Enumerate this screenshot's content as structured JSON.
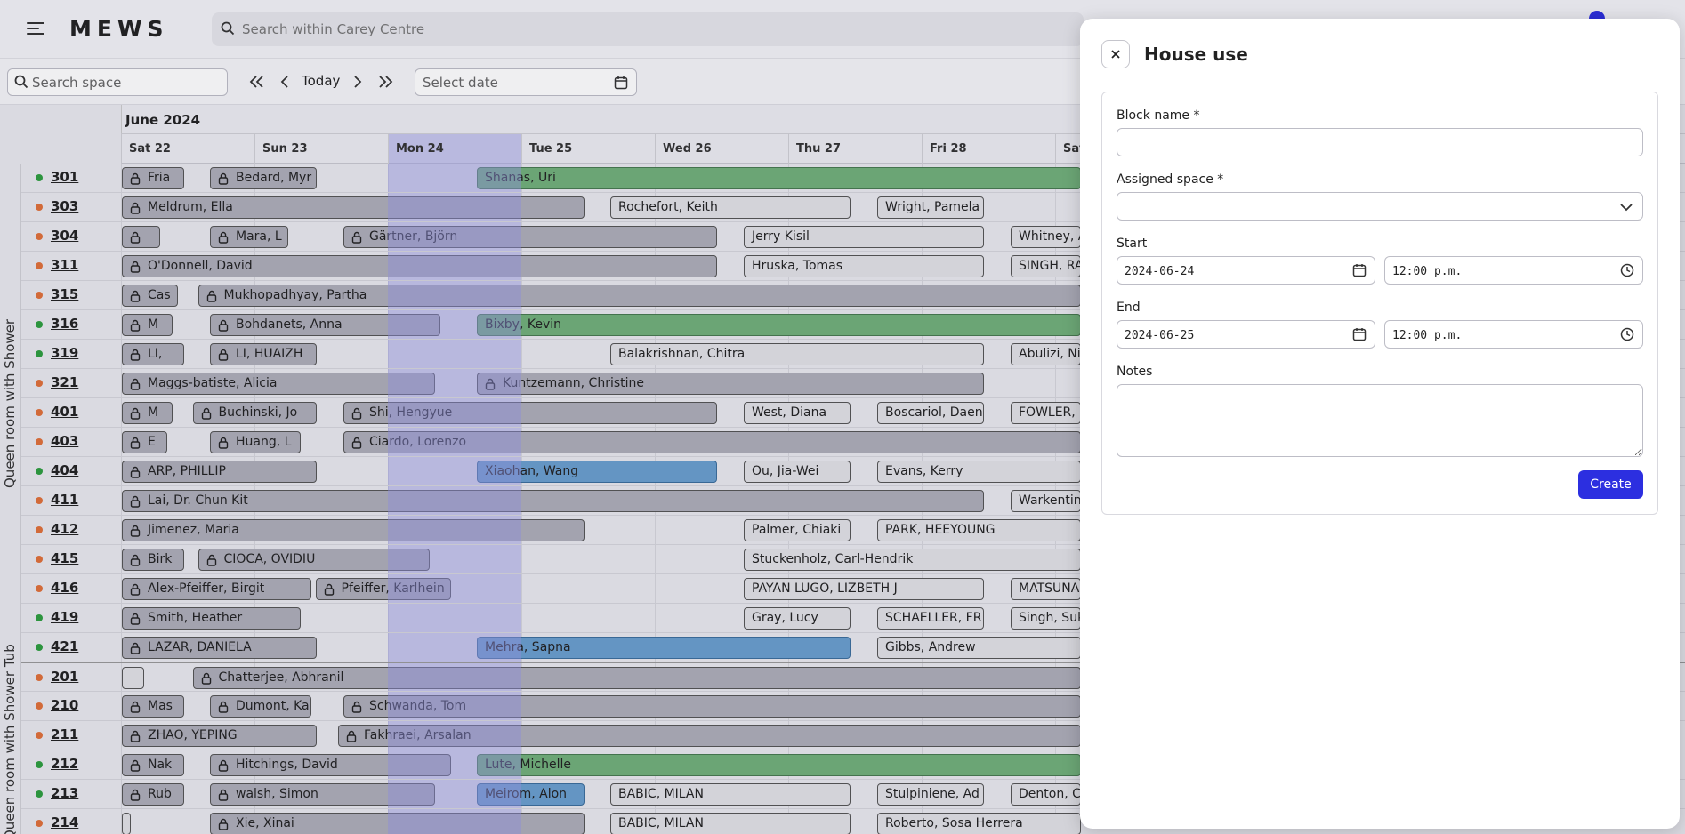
{
  "app": {
    "logo": "MEWS",
    "global_search_placeholder": "Search within Carey Centre"
  },
  "toolbar": {
    "space_search_placeholder": "Search space",
    "today_label": "Today",
    "select_date_placeholder": "Select date"
  },
  "calendar": {
    "month_label": "June 2024",
    "days": [
      "Sat 22",
      "Sun 23",
      "Mon 24",
      "Tue 25",
      "Wed 26",
      "Thu 27",
      "Fri 28",
      "Sat"
    ],
    "groups": [
      {
        "label": "Queen room with Shower"
      },
      {
        "label": "Queen room with Shower Tub"
      }
    ],
    "status_colors": {
      "clean": "#2e9e3f",
      "dirty": "#e0703a"
    },
    "rooms": [
      {
        "number": "301",
        "status": "clean",
        "res": [
          {
            "name": "Fria",
            "locked": true,
            "s": 0,
            "e": 0.48
          },
          {
            "name": "Bedard, Myr",
            "locked": true,
            "s": 0.66,
            "e": 1.47
          },
          {
            "name": "Shanas, Uri",
            "locked": false,
            "color": "green",
            "s": 2.66,
            "e": 7.2
          }
        ]
      },
      {
        "number": "303",
        "status": "dirty",
        "res": [
          {
            "name": "Meldrum, Ella",
            "locked": true,
            "s": 0,
            "e": 3.48
          },
          {
            "name": "Rochefort, Keith",
            "locked": false,
            "s": 3.66,
            "e": 5.47
          },
          {
            "name": "Wright, Pamela",
            "locked": false,
            "s": 5.66,
            "e": 6.47
          }
        ]
      },
      {
        "number": "304",
        "status": "dirty",
        "res": [
          {
            "name": "",
            "locked": true,
            "s": 0,
            "e": 0.3
          },
          {
            "name": "Mara, L",
            "locked": true,
            "s": 0.66,
            "e": 1.26
          },
          {
            "name": "Gärtner, Björn",
            "locked": true,
            "s": 1.66,
            "e": 4.47
          },
          {
            "name": "Jerry Kisil",
            "locked": false,
            "s": 4.66,
            "e": 6.47
          },
          {
            "name": "Whitney, A",
            "locked": false,
            "s": 6.66,
            "e": 7.2
          }
        ]
      },
      {
        "number": "311",
        "status": "dirty",
        "res": [
          {
            "name": "O'Donnell, David",
            "locked": true,
            "s": 0,
            "e": 4.47
          },
          {
            "name": "Hruska, Tomas",
            "locked": false,
            "s": 4.66,
            "e": 6.47
          },
          {
            "name": "SINGH, RA",
            "locked": false,
            "s": 6.66,
            "e": 7.2
          }
        ]
      },
      {
        "number": "315",
        "status": "dirty",
        "res": [
          {
            "name": "Cas",
            "locked": true,
            "s": 0,
            "e": 0.43
          },
          {
            "name": "Mukhopadhyay, Partha",
            "locked": true,
            "s": 0.57,
            "e": 7.2
          }
        ]
      },
      {
        "number": "316",
        "status": "clean",
        "res": [
          {
            "name": "M",
            "locked": true,
            "s": 0,
            "e": 0.39
          },
          {
            "name": "Bohdanets, Anna",
            "locked": true,
            "s": 0.66,
            "e": 2.4
          },
          {
            "name": "Bixby, Kevin",
            "locked": false,
            "color": "green",
            "s": 2.66,
            "e": 7.2
          }
        ]
      },
      {
        "number": "319",
        "status": "clean",
        "res": [
          {
            "name": "LI,",
            "locked": true,
            "s": 0,
            "e": 0.48
          },
          {
            "name": "LI, HUAIZH",
            "locked": true,
            "s": 0.66,
            "e": 1.47
          },
          {
            "name": "Balakrishnan, Chitra",
            "locked": false,
            "s": 3.66,
            "e": 6.47
          },
          {
            "name": "Abulizi, Nij",
            "locked": false,
            "s": 6.66,
            "e": 7.2
          }
        ]
      },
      {
        "number": "321",
        "status": "dirty",
        "res": [
          {
            "name": "Maggs-batiste, Alicia",
            "locked": true,
            "s": 0,
            "e": 2.36
          },
          {
            "name": "Kuntzemann, Christine",
            "locked": true,
            "s": 2.66,
            "e": 6.47
          }
        ]
      },
      {
        "number": "401",
        "status": "dirty",
        "res": [
          {
            "name": "M",
            "locked": true,
            "s": 0,
            "e": 0.39
          },
          {
            "name": "Buchinski, Jo",
            "locked": true,
            "s": 0.53,
            "e": 1.47
          },
          {
            "name": "Shi, Hengyue",
            "locked": true,
            "s": 1.66,
            "e": 4.47
          },
          {
            "name": "West, Diana",
            "locked": false,
            "s": 4.66,
            "e": 5.47
          },
          {
            "name": "Boscariol, Daen",
            "locked": false,
            "s": 5.66,
            "e": 6.47
          },
          {
            "name": "FOWLER, S",
            "locked": false,
            "s": 6.66,
            "e": 7.2
          }
        ]
      },
      {
        "number": "403",
        "status": "dirty",
        "res": [
          {
            "name": "E",
            "locked": true,
            "s": 0,
            "e": 0.35
          },
          {
            "name": "Huang, L",
            "locked": true,
            "s": 0.66,
            "e": 1.35
          },
          {
            "name": "Ciardo, Lorenzo",
            "locked": true,
            "s": 1.66,
            "e": 7.2
          }
        ]
      },
      {
        "number": "404",
        "status": "clean",
        "res": [
          {
            "name": "ARP, PHILLIP",
            "locked": true,
            "s": 0,
            "e": 1.47
          },
          {
            "name": "Xiaohan, Wang",
            "locked": false,
            "color": "blue",
            "s": 2.66,
            "e": 4.47
          },
          {
            "name": "Ou, Jia-Wei",
            "locked": false,
            "s": 4.66,
            "e": 5.47
          },
          {
            "name": "Evans, Kerry",
            "locked": false,
            "s": 5.66,
            "e": 7.2
          }
        ]
      },
      {
        "number": "411",
        "status": "dirty",
        "res": [
          {
            "name": "Lai, Dr. Chun Kit",
            "locked": true,
            "s": 0,
            "e": 6.47
          },
          {
            "name": "Warkentine",
            "locked": false,
            "s": 6.66,
            "e": 7.2
          }
        ]
      },
      {
        "number": "412",
        "status": "dirty",
        "res": [
          {
            "name": "Jimenez, Maria",
            "locked": true,
            "s": 0,
            "e": 3.48
          },
          {
            "name": "Palmer, Chiaki",
            "locked": false,
            "s": 4.66,
            "e": 5.47
          },
          {
            "name": "PARK, HEEYOUNG",
            "locked": false,
            "s": 5.66,
            "e": 7.2
          }
        ]
      },
      {
        "number": "415",
        "status": "dirty",
        "res": [
          {
            "name": "Birk",
            "locked": true,
            "s": 0,
            "e": 0.48
          },
          {
            "name": "CIOCA, OVIDIU",
            "locked": true,
            "s": 0.57,
            "e": 2.32
          },
          {
            "name": "Stuckenholz, Carl-Hendrik",
            "locked": false,
            "s": 4.66,
            "e": 7.2
          }
        ]
      },
      {
        "number": "416",
        "status": "dirty",
        "res": [
          {
            "name": "Alex-Pfeiffer, Birgit",
            "locked": true,
            "s": 0,
            "e": 1.43
          },
          {
            "name": "Pfeiffer, Karlhein",
            "locked": true,
            "s": 1.45,
            "e": 2.48
          },
          {
            "name": "PAYAN LUGO, LIZBETH J",
            "locked": false,
            "s": 4.66,
            "e": 6.47
          },
          {
            "name": "MATSUNA",
            "locked": false,
            "s": 6.66,
            "e": 7.2
          }
        ]
      },
      {
        "number": "419",
        "status": "clean",
        "res": [
          {
            "name": "Smith, Heather",
            "locked": true,
            "s": 0,
            "e": 1.35
          },
          {
            "name": "Gray, Lucy",
            "locked": false,
            "s": 4.66,
            "e": 5.47
          },
          {
            "name": "SCHAELLER, FR",
            "locked": false,
            "s": 5.66,
            "e": 6.47
          },
          {
            "name": "Singh, Suk",
            "locked": false,
            "s": 6.66,
            "e": 7.2
          }
        ]
      },
      {
        "number": "421",
        "status": "clean",
        "res": [
          {
            "name": "LAZAR, DANIELA",
            "locked": true,
            "s": 0,
            "e": 1.47
          },
          {
            "name": "Mehra, Sapna",
            "locked": false,
            "color": "blue",
            "s": 2.66,
            "e": 5.47
          },
          {
            "name": "Gibbs, Andrew",
            "locked": false,
            "s": 5.66,
            "e": 7.2
          }
        ]
      },
      {
        "number": "201",
        "status": "dirty",
        "res": [
          {
            "name": "",
            "locked": false,
            "s": 0,
            "e": 0.18
          },
          {
            "name": "Chatterjee, Abhranil",
            "locked": true,
            "s": 0.53,
            "e": 7.2
          }
        ]
      },
      {
        "number": "210",
        "status": "dirty",
        "res": [
          {
            "name": "Mas",
            "locked": true,
            "s": 0,
            "e": 0.48
          },
          {
            "name": "Dumont, Kat",
            "locked": true,
            "s": 0.66,
            "e": 1.43
          },
          {
            "name": "Schwanda, Tom",
            "locked": true,
            "s": 1.66,
            "e": 7.2
          }
        ]
      },
      {
        "number": "211",
        "status": "dirty",
        "res": [
          {
            "name": "ZHAO, YEPING",
            "locked": true,
            "s": 0,
            "e": 1.47
          },
          {
            "name": "Fakhraei, Arsalan",
            "locked": true,
            "s": 1.62,
            "e": 7.2
          }
        ]
      },
      {
        "number": "212",
        "status": "clean",
        "res": [
          {
            "name": "Nak",
            "locked": true,
            "s": 0,
            "e": 0.48
          },
          {
            "name": "Hitchings, David",
            "locked": true,
            "s": 0.66,
            "e": 2.48
          },
          {
            "name": "Lute, Michelle",
            "locked": false,
            "color": "green",
            "s": 2.66,
            "e": 7.2
          }
        ]
      },
      {
        "number": "213",
        "status": "clean",
        "res": [
          {
            "name": "Rub",
            "locked": true,
            "s": 0,
            "e": 0.48
          },
          {
            "name": "walsh, Simon",
            "locked": true,
            "s": 0.66,
            "e": 2.36
          },
          {
            "name": "Meirom, Alon",
            "locked": false,
            "color": "blue",
            "s": 2.66,
            "e": 3.48
          },
          {
            "name": "BABIC, MILAN",
            "locked": false,
            "s": 3.66,
            "e": 5.47
          },
          {
            "name": "Stulpiniene, Ad",
            "locked": false,
            "s": 5.66,
            "e": 6.47
          },
          {
            "name": "Denton, Ch",
            "locked": false,
            "s": 6.66,
            "e": 7.2
          }
        ]
      },
      {
        "number": "214",
        "status": "dirty",
        "res": [
          {
            "name": "",
            "locked": false,
            "s": 0,
            "e": 0.03
          },
          {
            "name": "Xie, Xinai",
            "locked": true,
            "s": 0.66,
            "e": 3.48
          },
          {
            "name": "BABIC, MILAN",
            "locked": false,
            "s": 3.66,
            "e": 5.47
          },
          {
            "name": "Roberto, Sosa Herrera",
            "locked": false,
            "s": 5.66,
            "e": 7.2
          }
        ]
      }
    ]
  },
  "dialog": {
    "title": "House use",
    "block_name_label": "Block name *",
    "block_name_value": "",
    "assigned_space_label": "Assigned space *",
    "assigned_space_value": "",
    "start_label": "Start",
    "start_date": "2024-06-24",
    "start_time": "12:00 p.m.",
    "end_label": "End",
    "end_date": "2024-06-25",
    "end_time": "12:00 p.m.",
    "notes_label": "Notes",
    "notes_value": "",
    "create_label": "Create"
  }
}
